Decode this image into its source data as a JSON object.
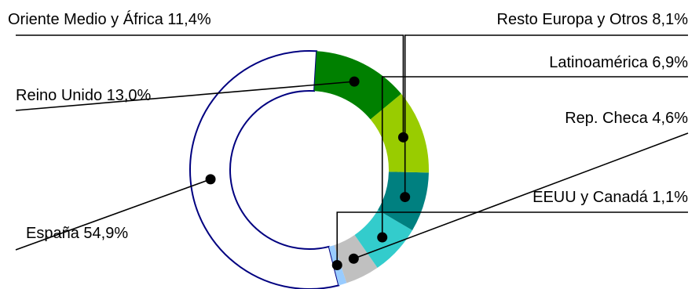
{
  "chart_data": {
    "type": "pie",
    "variant": "donut",
    "title": "",
    "start": "top",
    "direction": "counterclockwise",
    "slices": [
      {
        "label": "España",
        "value": 54.9,
        "value_label": "54,9%",
        "color": "#ffffff",
        "stroke": "#000080"
      },
      {
        "label": "EEUU y Canadá",
        "value": 1.1,
        "value_label": "1,1%",
        "color": "#99ccff"
      },
      {
        "label": "Rep. Checa",
        "value": 4.6,
        "value_label": "4,6%",
        "color": "#c0c0c0"
      },
      {
        "label": "Latinoamérica",
        "value": 6.9,
        "value_label": "6,9%",
        "color": "#33cccc"
      },
      {
        "label": "Resto Europa y Otros",
        "value": 8.1,
        "value_label": "8,1%",
        "color": "#008080"
      },
      {
        "label": "Oriente Medio y África",
        "value": 11.4,
        "value_label": "11,4%",
        "color": "#99cc00"
      },
      {
        "label": "Reino Unido",
        "value": 13.0,
        "value_label": "13,0%",
        "color": "#008000"
      }
    ]
  }
}
